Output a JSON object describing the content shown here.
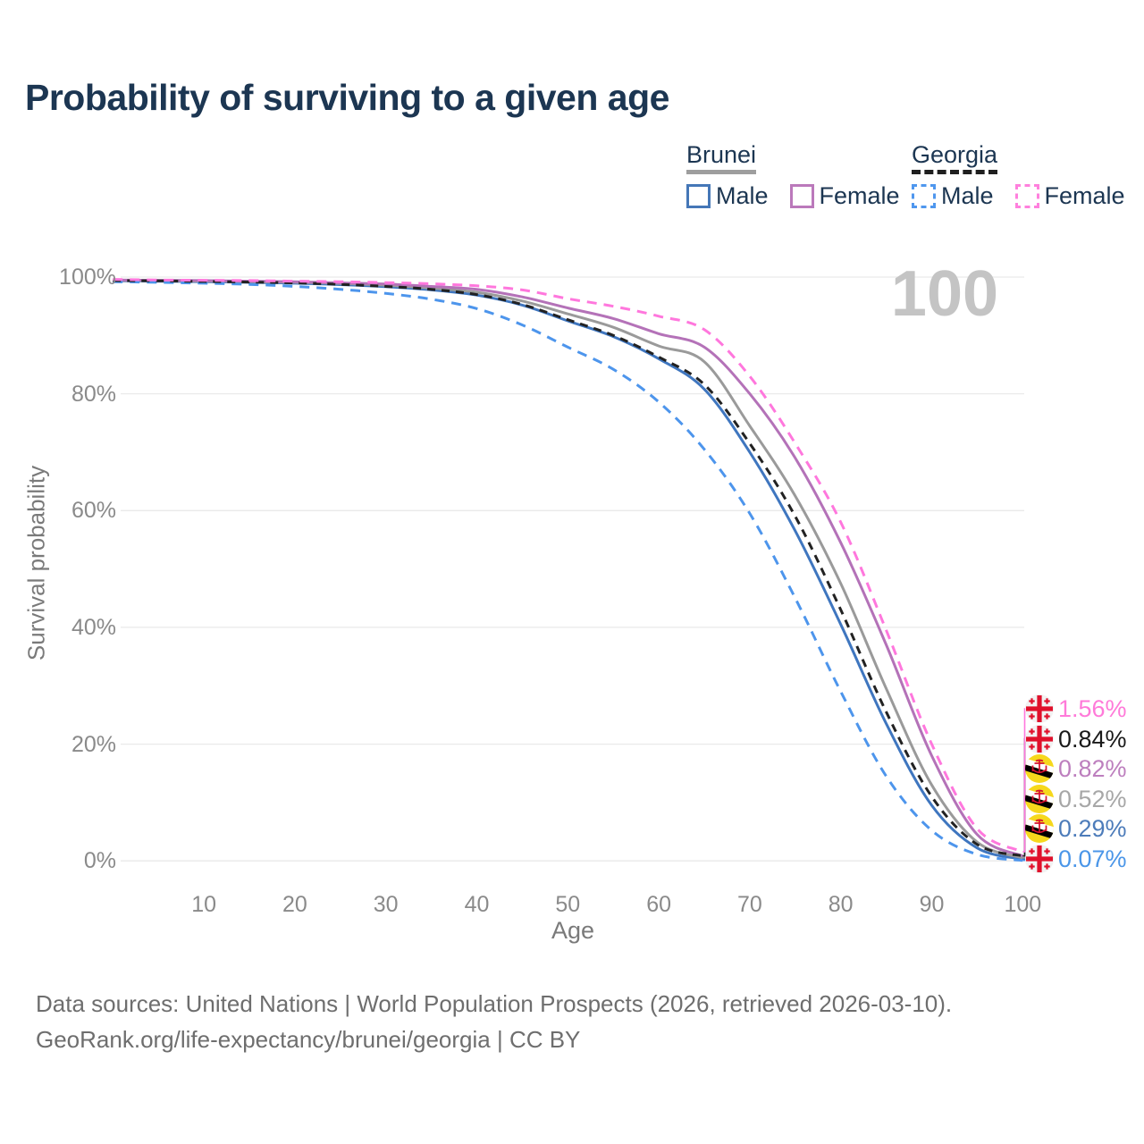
{
  "title": "Probability of surviving to a given age",
  "watermark_age": "100",
  "legend": {
    "groups": [
      {
        "name": "Brunei",
        "line_style": "solid",
        "underline_color": "#9e9e9e",
        "items": [
          {
            "label": "Male",
            "color": "#4577b7"
          },
          {
            "label": "Female",
            "color": "#bb79bb"
          }
        ]
      },
      {
        "name": "Georgia",
        "line_style": "dashed",
        "underline_color": "#1f1f1f",
        "items": [
          {
            "label": "Male",
            "color": "#4f97ee"
          },
          {
            "label": "Female",
            "color": "#ff80dd"
          }
        ]
      }
    ]
  },
  "chart_data": {
    "type": "line",
    "title": "Probability of surviving to a given age",
    "xlabel": "Age",
    "ylabel": "Survival probability",
    "xlim": [
      0,
      100
    ],
    "ylim": [
      0,
      100
    ],
    "grid": "horizontal",
    "x_ticks": {
      "values": [
        10,
        20,
        30,
        40,
        50,
        60,
        70,
        80,
        90,
        100
      ],
      "labels": [
        "10",
        "20",
        "30",
        "40",
        "50",
        "60",
        "70",
        "80",
        "90",
        "100"
      ]
    },
    "y_ticks": {
      "values": [
        0,
        20,
        40,
        60,
        80,
        100
      ],
      "labels": [
        "0%",
        "20%",
        "40%",
        "60%",
        "80%",
        "100%"
      ]
    },
    "x": [
      0,
      5,
      10,
      15,
      20,
      25,
      30,
      35,
      40,
      45,
      50,
      55,
      60,
      65,
      70,
      75,
      80,
      85,
      90,
      95,
      100
    ],
    "series": [
      {
        "name": "Brunei Male",
        "country": "Brunei",
        "sex": "Male",
        "color": "#3f76bf",
        "dashed": false,
        "flag": "brunei",
        "end_label": "0.29%",
        "end_value": 0.29,
        "label_color": "#4d7cba",
        "values": [
          99.35,
          99.3,
          99.2,
          99.1,
          98.95,
          98.7,
          98.35,
          97.8,
          96.9,
          95.2,
          92.5,
          89.8,
          86.0,
          80.8,
          70.0,
          56.5,
          40.5,
          23.5,
          9.5,
          2.2,
          0.29
        ]
      },
      {
        "name": "Brunei Total",
        "country": "Brunei",
        "sex": "Total",
        "color": "#9a9a9a",
        "dashed": false,
        "flag": "brunei",
        "end_label": "0.52%",
        "end_value": 0.52,
        "label_color": "#a7a7a7",
        "values": [
          99.4,
          99.4,
          99.3,
          99.2,
          99.1,
          98.9,
          98.6,
          98.1,
          97.4,
          95.9,
          93.7,
          91.4,
          88.2,
          85.5,
          74.5,
          62.5,
          47.5,
          29.5,
          13.0,
          3.2,
          0.52
        ]
      },
      {
        "name": "Brunei Female",
        "country": "Brunei",
        "sex": "Female",
        "color": "#b472b8",
        "dashed": false,
        "flag": "brunei",
        "end_label": "0.82%",
        "end_value": 0.82,
        "label_color": "#bd7fbe",
        "values": [
          99.5,
          99.45,
          99.4,
          99.3,
          99.2,
          99.0,
          98.8,
          98.4,
          97.9,
          96.6,
          94.7,
          92.9,
          90.3,
          88.0,
          80.0,
          69.0,
          54.5,
          37.0,
          18.0,
          4.5,
          0.82
        ]
      },
      {
        "name": "Georgia Male",
        "country": "Georgia",
        "sex": "Male",
        "color": "#4d95ec",
        "dashed": true,
        "flag": "georgia",
        "end_label": "0.07%",
        "end_value": 0.07,
        "label_color": "#4b96e8",
        "values": [
          99.2,
          99.1,
          98.95,
          98.75,
          98.4,
          97.9,
          97.2,
          96.2,
          94.6,
          91.8,
          88.0,
          84.2,
          78.6,
          70.5,
          59.5,
          45.0,
          29.0,
          14.5,
          5.2,
          1.1,
          0.07
        ]
      },
      {
        "name": "Georgia Total",
        "country": "Georgia",
        "sex": "Total",
        "color": "#222222",
        "dashed": true,
        "flag": "georgia",
        "end_label": "0.84%",
        "end_value": 0.84,
        "label_color": "#1a1a1a",
        "values": [
          99.4,
          99.35,
          99.25,
          99.15,
          99.0,
          98.75,
          98.4,
          97.9,
          97.0,
          95.3,
          92.7,
          90.0,
          86.3,
          81.6,
          71.5,
          59.0,
          43.0,
          25.5,
          11.0,
          2.8,
          0.84
        ]
      },
      {
        "name": "Georgia Female",
        "country": "Georgia",
        "sex": "Female",
        "color": "#ff77dd",
        "dashed": true,
        "flag": "georgia",
        "end_label": "1.56%",
        "end_value": 1.56,
        "label_color": "#ff7ad9",
        "values": [
          99.6,
          99.5,
          99.45,
          99.4,
          99.3,
          99.2,
          99.05,
          98.85,
          98.5,
          97.8,
          96.3,
          95.0,
          93.3,
          91.0,
          83.0,
          71.5,
          58.0,
          39.5,
          20.0,
          5.5,
          1.56
        ]
      }
    ]
  },
  "footer": {
    "line1": "Data sources: United Nations | World Population Prospects (2026, retrieved 2026-03-10).",
    "line2": "GeoRank.org/life-expectancy/brunei/georgia | CC BY"
  },
  "colors": {
    "title_text": "#1c3652",
    "axis_text": "#8a8a8a",
    "grid_line": "#eaeaea",
    "watermark": "#c4c4c4",
    "footer_text": "#6e6e6e"
  }
}
